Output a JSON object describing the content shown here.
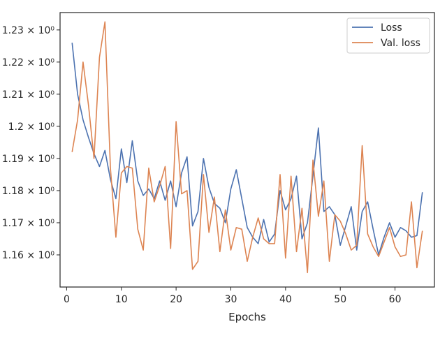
{
  "chart_data": {
    "type": "line",
    "title": "",
    "xlabel": "Epochs",
    "ylabel": "",
    "x_ticks": [
      0,
      10,
      20,
      30,
      40,
      50,
      60
    ],
    "y_ticks": [
      1.16,
      1.17,
      1.18,
      1.19,
      1.2,
      1.21,
      1.22,
      1.23
    ],
    "y_tick_labels": [
      "1.16 × 10⁰",
      "1.17 × 10⁰",
      "1.18 × 10⁰",
      "1.19 × 10⁰",
      "1.2 × 10⁰",
      "1.21 × 10⁰",
      "1.22 × 10⁰",
      "1.23 × 10⁰"
    ],
    "xlim": [
      -1.2,
      67.2
    ],
    "ylim": [
      1.15,
      1.2354
    ],
    "grid": false,
    "legend_position": "top-right",
    "x": [
      1,
      2,
      3,
      4,
      5,
      6,
      7,
      8,
      9,
      10,
      11,
      12,
      13,
      14,
      15,
      16,
      17,
      18,
      19,
      20,
      21,
      22,
      23,
      24,
      25,
      26,
      27,
      28,
      29,
      30,
      31,
      32,
      33,
      34,
      35,
      36,
      37,
      38,
      39,
      40,
      41,
      42,
      43,
      44,
      45,
      46,
      47,
      48,
      49,
      50,
      51,
      52,
      53,
      54,
      55,
      56,
      57,
      58,
      59,
      60,
      61,
      62,
      63,
      64,
      65
    ],
    "series": [
      {
        "name": "Loss",
        "color": "#4c72b0",
        "values": [
          1.226,
          1.21,
          1.202,
          1.1965,
          1.1915,
          1.1875,
          1.1925,
          1.1835,
          1.1775,
          1.193,
          1.1825,
          1.1955,
          1.183,
          1.1785,
          1.1805,
          1.1775,
          1.183,
          1.177,
          1.183,
          1.175,
          1.1855,
          1.1905,
          1.169,
          1.1735,
          1.19,
          1.181,
          1.176,
          1.1745,
          1.17,
          1.1805,
          1.1865,
          1.1775,
          1.1685,
          1.1655,
          1.1635,
          1.171,
          1.164,
          1.1665,
          1.18,
          1.174,
          1.1775,
          1.1845,
          1.165,
          1.17,
          1.1845,
          1.1995,
          1.1735,
          1.175,
          1.1725,
          1.163,
          1.169,
          1.175,
          1.1615,
          1.1735,
          1.1765,
          1.168,
          1.16,
          1.1655,
          1.17,
          1.1655,
          1.1685,
          1.1675,
          1.1655,
          1.166,
          1.1795
        ]
      },
      {
        "name": "Val. loss",
        "color": "#dd8452",
        "values": [
          1.192,
          1.202,
          1.22,
          1.2065,
          1.19,
          1.2215,
          1.2325,
          1.187,
          1.1655,
          1.1855,
          1.1875,
          1.187,
          1.168,
          1.1615,
          1.187,
          1.1765,
          1.1815,
          1.1875,
          1.162,
          1.2015,
          1.179,
          1.18,
          1.1555,
          1.158,
          1.185,
          1.167,
          1.178,
          1.161,
          1.174,
          1.1615,
          1.1685,
          1.168,
          1.158,
          1.1655,
          1.1715,
          1.165,
          1.1635,
          1.1635,
          1.185,
          1.159,
          1.1845,
          1.161,
          1.1745,
          1.1545,
          1.1895,
          1.172,
          1.183,
          1.158,
          1.1725,
          1.1705,
          1.1665,
          1.1615,
          1.163,
          1.194,
          1.1665,
          1.1625,
          1.1595,
          1.164,
          1.1685,
          1.1625,
          1.1595,
          1.16,
          1.1765,
          1.156,
          1.1675
        ]
      }
    ]
  }
}
